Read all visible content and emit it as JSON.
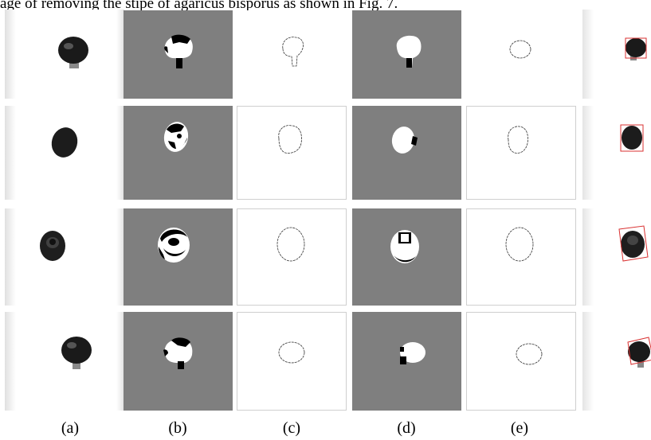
{
  "caption_partial": "age of removing the stipe of agaricus bisporus as shown in Fig. 7.",
  "labels": [
    "(a)",
    "(b)",
    "(c)",
    "(d)",
    "(e)"
  ]
}
